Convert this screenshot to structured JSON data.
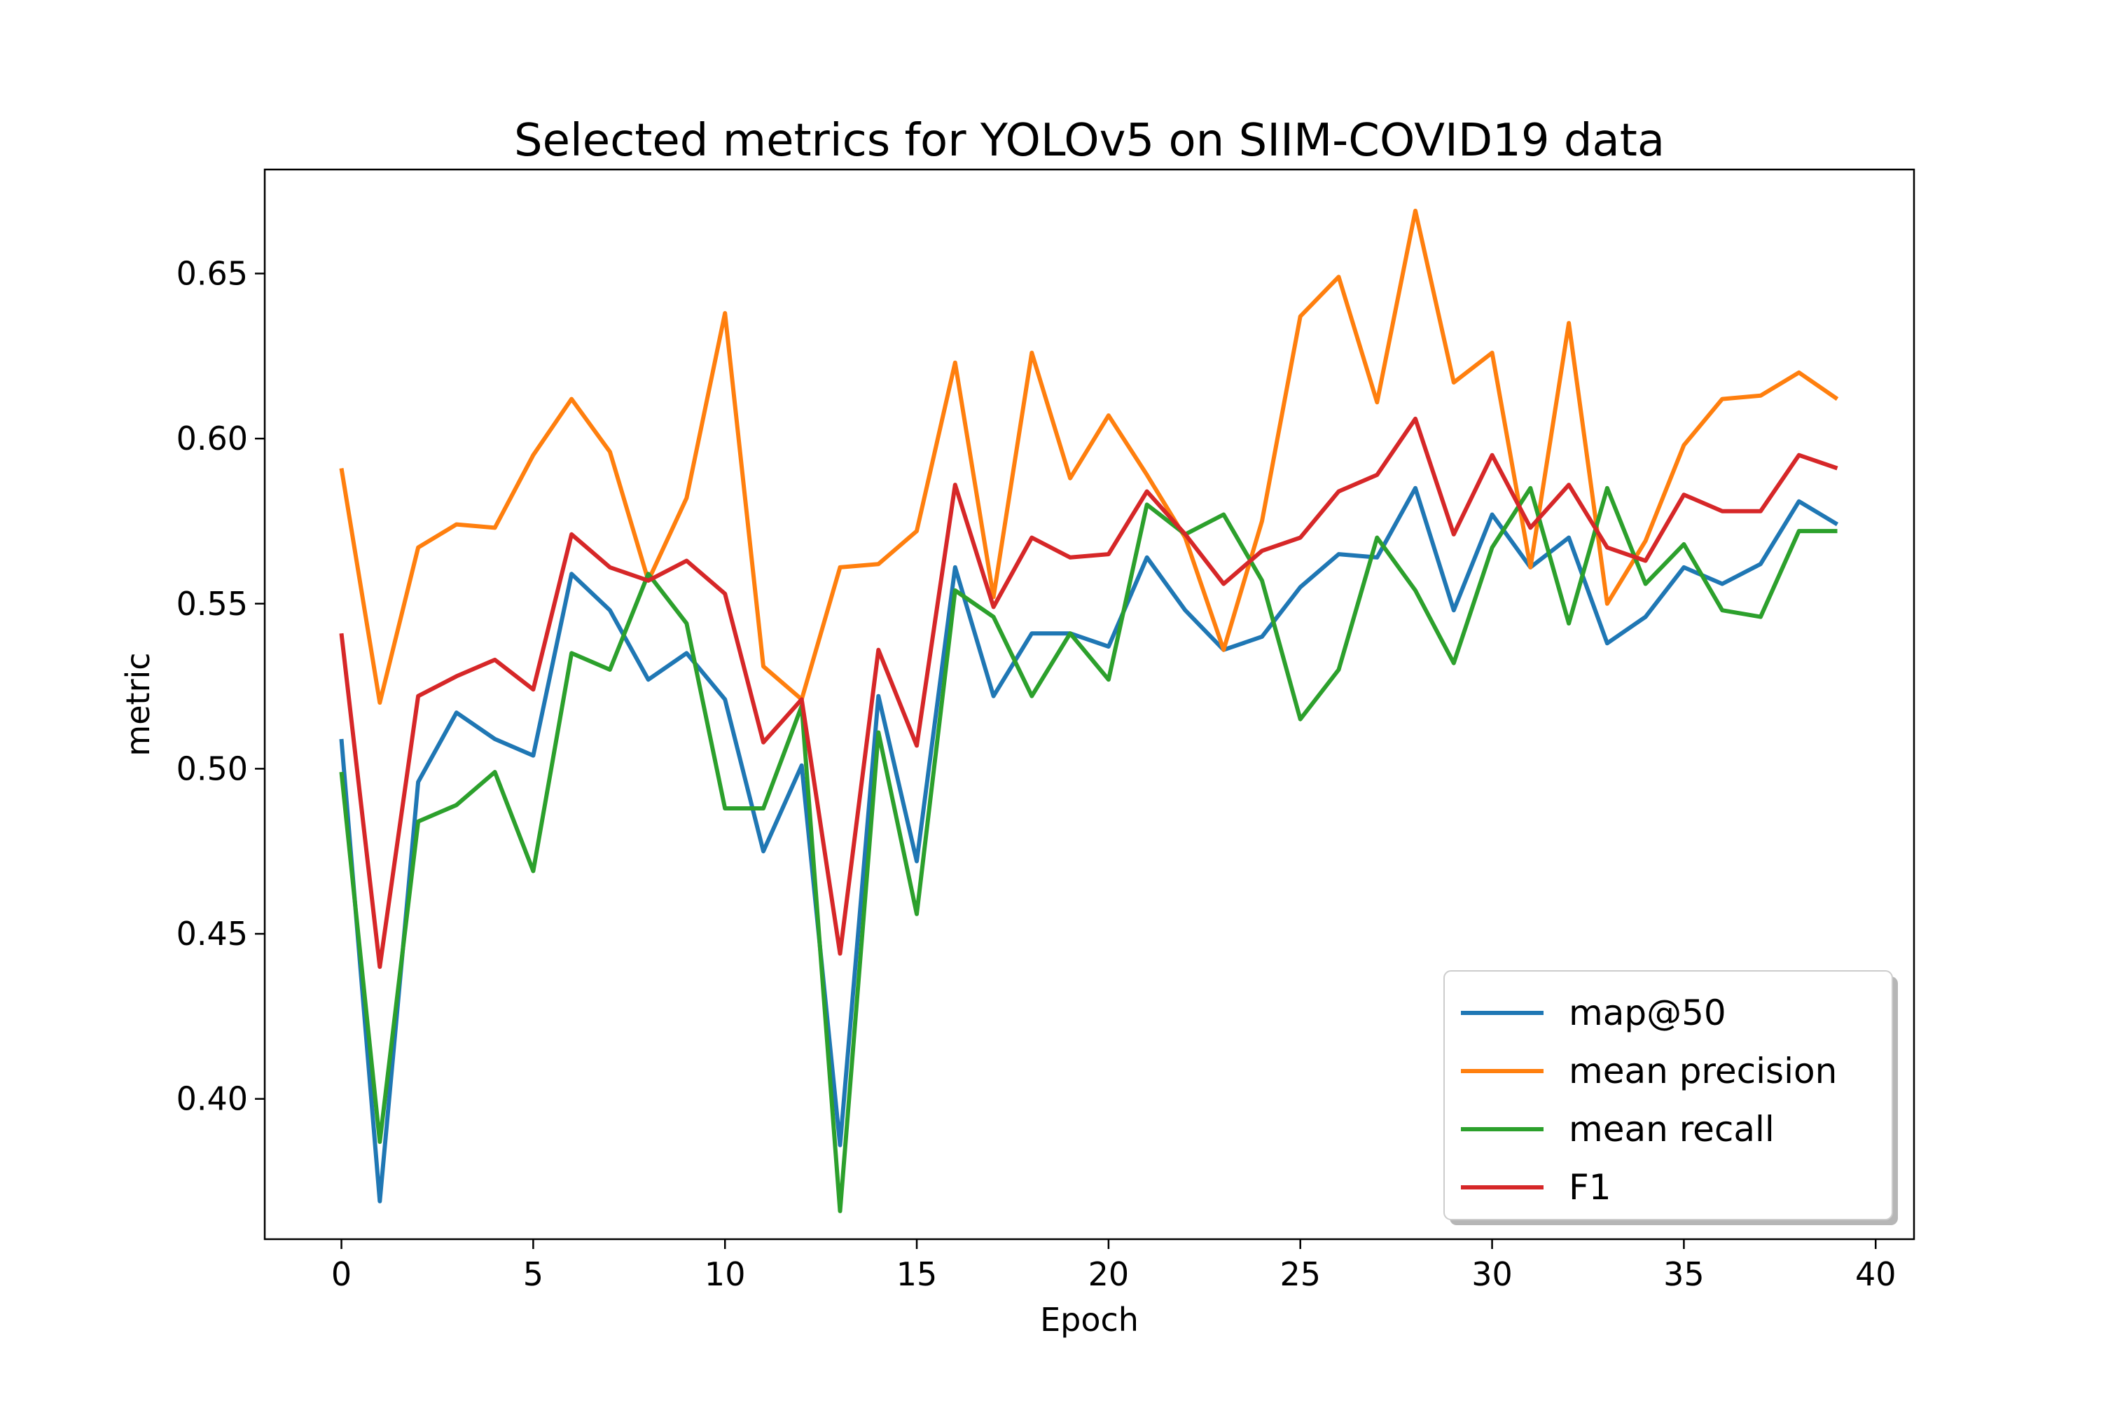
{
  "chart_data": {
    "type": "line",
    "title": "Selected metrics for YOLOv5 on SIIM-COVID19 data",
    "xlabel": "Epoch",
    "ylabel": "metric",
    "xlim": [
      -2,
      41
    ],
    "ylim": [
      0.3575,
      0.6815
    ],
    "xticks": [
      0,
      5,
      10,
      15,
      20,
      25,
      30,
      35,
      40
    ],
    "yticks": [
      0.4,
      0.45,
      0.5,
      0.55,
      0.6,
      0.65
    ],
    "grid": false,
    "legend_position": "lower-right",
    "x": [
      0,
      1,
      2,
      3,
      4,
      5,
      6,
      7,
      8,
      9,
      10,
      11,
      12,
      13,
      14,
      15,
      16,
      17,
      18,
      19,
      20,
      21,
      22,
      23,
      24,
      25,
      26,
      27,
      28,
      29,
      30,
      31,
      32,
      33,
      34,
      35,
      36,
      37,
      38,
      39
    ],
    "series": [
      {
        "name": "map@50",
        "color": "#1f77b4",
        "values": [
          0.509,
          0.369,
          0.496,
          0.517,
          0.509,
          0.504,
          0.559,
          0.548,
          0.527,
          0.535,
          0.521,
          0.475,
          0.501,
          0.386,
          0.522,
          0.472,
          0.561,
          0.522,
          0.541,
          0.541,
          0.537,
          0.564,
          0.548,
          0.536,
          0.54,
          0.555,
          0.565,
          0.564,
          0.585,
          0.548,
          0.577,
          0.561,
          0.57,
          0.538,
          0.546,
          0.561,
          0.556,
          0.562,
          0.581,
          0.574
        ]
      },
      {
        "name": "mean precision",
        "color": "#ff7f0e",
        "values": [
          0.591,
          0.52,
          0.567,
          0.574,
          0.573,
          0.595,
          0.612,
          0.596,
          0.557,
          0.582,
          0.638,
          0.531,
          0.521,
          0.561,
          0.562,
          0.572,
          0.623,
          0.552,
          0.626,
          0.588,
          0.607,
          0.589,
          0.57,
          0.536,
          0.575,
          0.637,
          0.649,
          0.611,
          0.669,
          0.617,
          0.626,
          0.561,
          0.635,
          0.55,
          0.569,
          0.598,
          0.612,
          0.613,
          0.62,
          0.612
        ]
      },
      {
        "name": "mean recall",
        "color": "#2ca02c",
        "values": [
          0.499,
          0.387,
          0.484,
          0.489,
          0.499,
          0.469,
          0.535,
          0.53,
          0.559,
          0.544,
          0.488,
          0.488,
          0.519,
          0.366,
          0.511,
          0.456,
          0.554,
          0.546,
          0.522,
          0.541,
          0.527,
          0.58,
          0.571,
          0.577,
          0.557,
          0.515,
          0.53,
          0.57,
          0.554,
          0.532,
          0.567,
          0.585,
          0.544,
          0.585,
          0.556,
          0.568,
          0.548,
          0.546,
          0.572,
          0.572
        ]
      },
      {
        "name": "F1",
        "color": "#d62728",
        "values": [
          0.541,
          0.44,
          0.522,
          0.528,
          0.533,
          0.524,
          0.571,
          0.561,
          0.557,
          0.563,
          0.553,
          0.508,
          0.521,
          0.444,
          0.536,
          0.507,
          0.586,
          0.549,
          0.57,
          0.564,
          0.565,
          0.584,
          0.571,
          0.556,
          0.566,
          0.57,
          0.584,
          0.589,
          0.606,
          0.571,
          0.595,
          0.573,
          0.586,
          0.567,
          0.563,
          0.583,
          0.578,
          0.578,
          0.595,
          0.591
        ]
      }
    ]
  }
}
